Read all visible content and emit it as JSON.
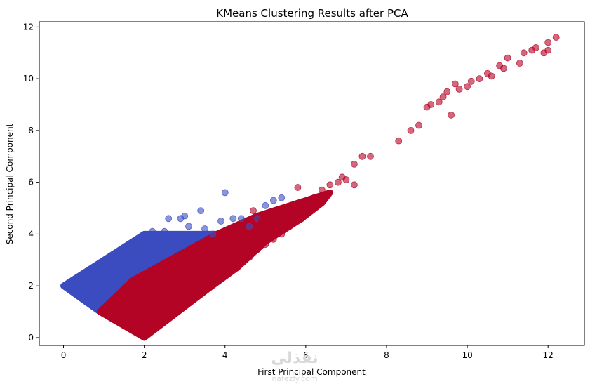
{
  "chart_data": {
    "type": "scatter",
    "title": "KMeans Clustering Results after PCA",
    "xlabel": "First Principal Component",
    "ylabel": "Second Principal Component",
    "xlim": [
      -0.6,
      12.9
    ],
    "ylim": [
      -0.3,
      12.2
    ],
    "xticks": [
      0,
      2,
      4,
      6,
      8,
      10,
      12
    ],
    "yticks": [
      0,
      2,
      4,
      6,
      8,
      10,
      12
    ],
    "grid": false,
    "point_alpha": 0.6,
    "colors": {
      "cluster_0": "#3b4cc0",
      "cluster_1": "#b40426"
    },
    "series": [
      {
        "cluster": 0,
        "dense_region": [
          [
            0.0,
            2.0
          ],
          [
            1.0,
            3.0
          ],
          [
            2.0,
            4.0
          ],
          [
            3.8,
            4.0
          ],
          [
            1.7,
            2.2
          ],
          [
            1.3,
            1.6
          ],
          [
            0.9,
            1.0
          ],
          [
            0.0,
            2.0
          ]
        ],
        "points": [
          [
            4.0,
            5.6
          ],
          [
            5.0,
            5.1
          ],
          [
            5.2,
            5.3
          ],
          [
            5.4,
            5.4
          ],
          [
            3.4,
            4.9
          ],
          [
            3.0,
            4.7
          ],
          [
            2.9,
            4.6
          ],
          [
            2.6,
            4.6
          ],
          [
            3.9,
            4.5
          ],
          [
            4.4,
            4.6
          ],
          [
            4.2,
            4.6
          ],
          [
            3.1,
            4.3
          ],
          [
            2.5,
            4.1
          ],
          [
            2.2,
            4.1
          ],
          [
            3.5,
            4.2
          ],
          [
            4.6,
            4.3
          ],
          [
            4.8,
            4.6
          ],
          [
            3.7,
            4.0
          ]
        ]
      },
      {
        "cluster": 1,
        "dense_region": [
          [
            0.9,
            1.0
          ],
          [
            1.3,
            1.6
          ],
          [
            1.7,
            2.2
          ],
          [
            3.8,
            4.0
          ],
          [
            4.8,
            4.7
          ],
          [
            5.4,
            5.0
          ],
          [
            6.2,
            5.4
          ],
          [
            6.6,
            5.6
          ],
          [
            6.4,
            5.2
          ],
          [
            5.9,
            4.6
          ],
          [
            5.0,
            3.7
          ],
          [
            4.3,
            2.7
          ],
          [
            3.6,
            1.9
          ],
          [
            2.0,
            0.0
          ],
          [
            0.9,
            1.0
          ]
        ],
        "points": [
          [
            12.2,
            11.6
          ],
          [
            12.0,
            11.4
          ],
          [
            11.7,
            11.2
          ],
          [
            11.6,
            11.1
          ],
          [
            11.4,
            11.0
          ],
          [
            11.0,
            10.8
          ],
          [
            10.8,
            10.5
          ],
          [
            10.5,
            10.2
          ],
          [
            10.1,
            9.9
          ],
          [
            9.8,
            9.6
          ],
          [
            9.7,
            9.8
          ],
          [
            9.5,
            9.5
          ],
          [
            9.4,
            9.3
          ],
          [
            9.3,
            9.1
          ],
          [
            9.6,
            8.6
          ],
          [
            9.1,
            9.0
          ],
          [
            9.0,
            8.9
          ],
          [
            8.8,
            8.2
          ],
          [
            8.6,
            8.0
          ],
          [
            8.3,
            7.6
          ],
          [
            7.6,
            7.0
          ],
          [
            7.4,
            7.0
          ],
          [
            7.2,
            6.7
          ],
          [
            6.9,
            6.2
          ],
          [
            7.0,
            6.1
          ],
          [
            6.8,
            6.0
          ],
          [
            7.2,
            5.9
          ],
          [
            6.6,
            5.9
          ],
          [
            6.4,
            5.7
          ],
          [
            5.8,
            5.8
          ],
          [
            6.2,
            5.4
          ],
          [
            6.0,
            5.1
          ],
          [
            5.9,
            4.6
          ],
          [
            5.6,
            4.3
          ],
          [
            5.4,
            4.0
          ],
          [
            5.2,
            3.8
          ],
          [
            5.0,
            3.6
          ],
          [
            4.8,
            3.4
          ],
          [
            4.6,
            3.1
          ],
          [
            4.4,
            2.9
          ],
          [
            4.3,
            2.7
          ],
          [
            4.7,
            4.9
          ],
          [
            5.3,
            4.7
          ],
          [
            5.6,
            5.0
          ],
          [
            4.9,
            4.5
          ],
          [
            11.9,
            11.0
          ],
          [
            11.3,
            10.6
          ],
          [
            10.9,
            10.4
          ],
          [
            10.6,
            10.1
          ],
          [
            10.3,
            10.0
          ],
          [
            10.0,
            9.7
          ],
          [
            12.0,
            11.1
          ]
        ]
      }
    ]
  },
  "watermark": {
    "main": "نفذلي",
    "sub": "nafezly.com"
  }
}
